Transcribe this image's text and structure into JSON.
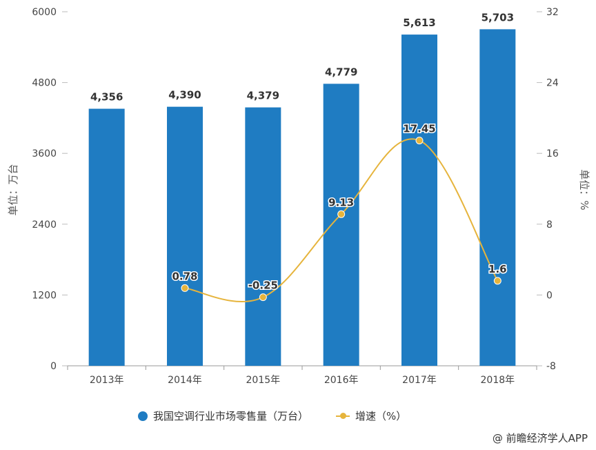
{
  "chart_data": {
    "type": "bar+line",
    "categories": [
      "2013年",
      "2014年",
      "2015年",
      "2016年",
      "2017年",
      "2018年"
    ],
    "series": [
      {
        "name": "我国空调行业市场零售量（万台）",
        "type": "bar",
        "axis": "left",
        "color": "#1f7cc2",
        "values": [
          4356,
          4390,
          4379,
          4779,
          5613,
          5703
        ],
        "labels": [
          "4,356",
          "4,390",
          "4,379",
          "4,779",
          "5,613",
          "5,703"
        ]
      },
      {
        "name": "增速（%）",
        "type": "line",
        "axis": "right",
        "color": "#e6b43c",
        "values": [
          null,
          0.78,
          -0.25,
          9.13,
          17.45,
          1.6
        ],
        "labels": [
          "",
          "0.78",
          "-0.25",
          "9.13",
          "17.45",
          "1.6"
        ]
      }
    ],
    "ylabel": "单位：万台",
    "y2label": "单位：%",
    "ylim": [
      0,
      6000
    ],
    "yticks": [
      "0",
      "1200",
      "2400",
      "3600",
      "4800",
      "6000"
    ],
    "y2lim": [
      -8,
      32
    ],
    "y2ticks": [
      "-8",
      "0",
      "8",
      "16",
      "24",
      "32"
    ],
    "grid": false,
    "legend": "bottom"
  },
  "credit": "@ 前瞻经济学人APP"
}
